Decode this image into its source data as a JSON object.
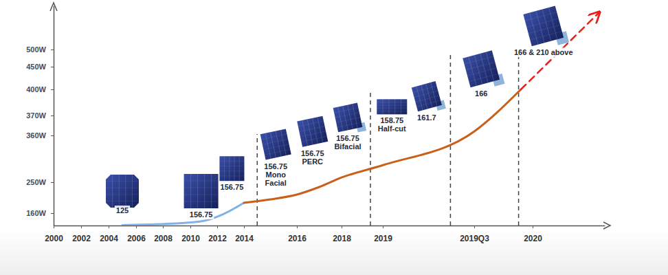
{
  "chart_data": {
    "type": "line",
    "xlim": [
      2000,
      2020.6
    ],
    "xticks": [
      2000,
      2002,
      2004,
      2006,
      2008,
      2010,
      2012,
      2014,
      2016,
      2018,
      2019,
      {
        "value": 2019.5,
        "label": "2019Q3"
      },
      2020
    ],
    "ylim": [
      125,
      620
    ],
    "yticks": [
      {
        "value": 160,
        "label": "160W"
      },
      {
        "value": 250,
        "label": "250W"
      },
      {
        "value": 360,
        "label": "360W"
      },
      {
        "value": 370,
        "label": "370W"
      },
      {
        "value": 400,
        "label": "400W"
      },
      {
        "value": 450,
        "label": "450W"
      },
      {
        "value": 500,
        "label": "500W"
      }
    ],
    "grid": false,
    "series": [
      {
        "color": "#7fb2e5",
        "x": [
          2005,
          2007,
          2009,
          2011,
          2012.5,
          2014
        ],
        "values": [
          126,
          128,
          131,
          138,
          158,
          190
        ]
      },
      {
        "color": "#c8601a",
        "x": [
          2014,
          2015,
          2016,
          2017,
          2018,
          2019,
          2019.5,
          2019.9
        ],
        "values": [
          190,
          200,
          214,
          236,
          261,
          290,
          362,
          400
        ]
      },
      {
        "color": "#e8221b",
        "line_style": "dashed",
        "marker": "arrow",
        "x": [
          2019.9,
          2020.55
        ],
        "values": [
          400,
          600
        ]
      }
    ],
    "dividers": [
      2014.5,
      2018.7,
      2019.37,
      2019.88
    ],
    "wafers": [
      {
        "label": [
          "125"
        ],
        "x": 2005,
        "y": 224
      },
      {
        "label": [
          "156.75"
        ],
        "x": 2010.8,
        "y": 224
      },
      {
        "label": [
          "156.75"
        ],
        "x": 2013.1,
        "y": 282
      },
      {
        "label": [
          "156.75",
          "Mono",
          "Facial"
        ],
        "x": 2015.2,
        "y": 339
      },
      {
        "label": [
          "156.75",
          "PERC"
        ],
        "x": 2016.7,
        "y": 362
      },
      {
        "label": [
          "156.75",
          "Bifacial"
        ],
        "x": 2018.15,
        "y": 369
      },
      {
        "label": [
          "158.75",
          "Half-cut"
        ],
        "x": 2019.05,
        "y": 380
      },
      {
        "label": [
          "161.7"
        ],
        "x": 2019.24,
        "y": 392
      },
      {
        "label": [
          "166"
        ],
        "x": 2019.56,
        "y": 445
      },
      {
        "label": [
          "166 & 210 above"
        ],
        "x": 2020.09,
        "y": 564
      }
    ]
  }
}
